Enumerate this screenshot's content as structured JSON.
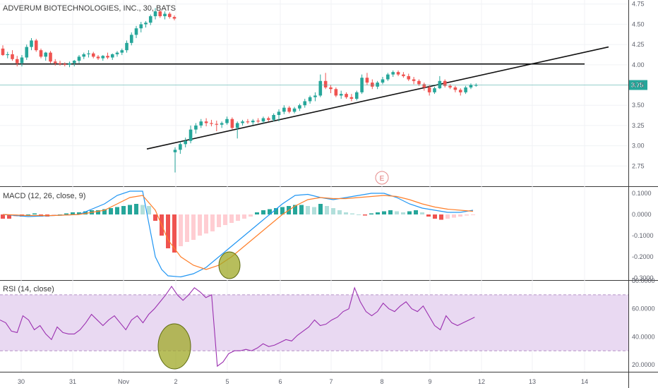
{
  "main_pane": {
    "title": "ADVERUM BIOTECHNOLOGIES, INC., 30, BATS",
    "price_label": "3.75",
    "earnings_marker": "E"
  },
  "macd_pane": {
    "title": "MACD (12, 26, close, 9)"
  },
  "rsi_pane": {
    "title": "RSI (14, close)"
  },
  "colors": {
    "up": "#26a69a",
    "down": "#ef5350",
    "macd": "#2196f3",
    "signal": "#ff7f2a",
    "rsi": "#9b30b0",
    "rsi_band": "#e9d9f2",
    "annotation": "#9fa826",
    "price_line": "#26a69a"
  },
  "chart_data": [
    {
      "type": "candlestick",
      "title": "ADVERUM BIOTECHNOLOGIES, INC., 30, BATS",
      "ylim": [
        2.5,
        4.8
      ],
      "y_ticks": [
        "4.75",
        "4.50",
        "4.25",
        "4.00",
        "3.75",
        "3.50",
        "3.25",
        "3.00",
        "2.75"
      ],
      "x_ticks": [
        "30",
        "31",
        "Nov",
        "2",
        "5",
        "6",
        "7",
        "8",
        "9",
        "12",
        "13",
        "14"
      ],
      "last_price": 3.75,
      "candles": [
        {
          "o": 4.2,
          "h": 4.24,
          "l": 4.11,
          "c": 4.12
        },
        {
          "o": 4.12,
          "h": 4.16,
          "l": 4.08,
          "c": 4.13
        },
        {
          "o": 4.13,
          "h": 4.18,
          "l": 4.05,
          "c": 4.07
        },
        {
          "o": 4.07,
          "h": 4.11,
          "l": 3.98,
          "c": 4.02
        },
        {
          "o": 4.02,
          "h": 4.12,
          "l": 3.98,
          "c": 4.09
        },
        {
          "o": 4.09,
          "h": 4.25,
          "l": 4.06,
          "c": 4.22
        },
        {
          "o": 4.22,
          "h": 4.33,
          "l": 4.18,
          "c": 4.3
        },
        {
          "o": 4.3,
          "h": 4.32,
          "l": 4.16,
          "c": 4.18
        },
        {
          "o": 4.18,
          "h": 4.2,
          "l": 4.08,
          "c": 4.1
        },
        {
          "o": 4.1,
          "h": 4.16,
          "l": 4.05,
          "c": 4.15
        },
        {
          "o": 4.15,
          "h": 4.17,
          "l": 4.02,
          "c": 4.04
        },
        {
          "o": 4.04,
          "h": 4.07,
          "l": 3.99,
          "c": 4.02
        },
        {
          "o": 4.02,
          "h": 4.05,
          "l": 3.99,
          "c": 4.01
        },
        {
          "o": 4.01,
          "h": 4.03,
          "l": 3.98,
          "c": 4.0
        },
        {
          "o": 4.0,
          "h": 4.04,
          "l": 3.97,
          "c": 4.02
        },
        {
          "o": 4.02,
          "h": 4.06,
          "l": 3.98,
          "c": 4.05
        },
        {
          "o": 4.05,
          "h": 4.12,
          "l": 4.02,
          "c": 4.1
        },
        {
          "o": 4.1,
          "h": 4.15,
          "l": 4.07,
          "c": 4.13
        },
        {
          "o": 4.13,
          "h": 4.18,
          "l": 4.09,
          "c": 4.14
        },
        {
          "o": 4.14,
          "h": 4.16,
          "l": 4.08,
          "c": 4.1
        },
        {
          "o": 4.1,
          "h": 4.12,
          "l": 4.06,
          "c": 4.08
        },
        {
          "o": 4.08,
          "h": 4.12,
          "l": 4.05,
          "c": 4.11
        },
        {
          "o": 4.11,
          "h": 4.15,
          "l": 4.07,
          "c": 4.09
        },
        {
          "o": 4.09,
          "h": 4.14,
          "l": 4.06,
          "c": 4.13
        },
        {
          "o": 4.13,
          "h": 4.17,
          "l": 4.1,
          "c": 4.15
        },
        {
          "o": 4.15,
          "h": 4.2,
          "l": 4.12,
          "c": 4.18
        },
        {
          "o": 4.18,
          "h": 4.3,
          "l": 4.15,
          "c": 4.27
        },
        {
          "o": 4.27,
          "h": 4.4,
          "l": 4.24,
          "c": 4.37
        },
        {
          "o": 4.37,
          "h": 4.48,
          "l": 4.33,
          "c": 4.45
        },
        {
          "o": 4.45,
          "h": 4.53,
          "l": 4.4,
          "c": 4.5
        },
        {
          "o": 4.5,
          "h": 4.54,
          "l": 4.46,
          "c": 4.52
        },
        {
          "o": 4.52,
          "h": 4.62,
          "l": 4.49,
          "c": 4.6
        },
        {
          "o": 4.6,
          "h": 4.7,
          "l": 4.56,
          "c": 4.66
        },
        {
          "o": 4.66,
          "h": 4.68,
          "l": 4.58,
          "c": 4.6
        },
        {
          "o": 4.6,
          "h": 4.66,
          "l": 4.56,
          "c": 4.63
        },
        {
          "o": 4.63,
          "h": 4.65,
          "l": 4.57,
          "c": 4.59
        },
        {
          "o": 4.59,
          "h": 4.61,
          "l": 4.55,
          "c": 4.57
        },
        {
          "o": 2.92,
          "h": 2.98,
          "l": 2.67,
          "c": 2.95
        },
        {
          "o": 2.95,
          "h": 3.05,
          "l": 2.9,
          "c": 3.02
        },
        {
          "o": 3.02,
          "h": 3.1,
          "l": 2.98,
          "c": 3.06
        },
        {
          "o": 3.06,
          "h": 3.25,
          "l": 3.03,
          "c": 3.2
        },
        {
          "o": 3.2,
          "h": 3.28,
          "l": 3.15,
          "c": 3.25
        },
        {
          "o": 3.25,
          "h": 3.33,
          "l": 3.22,
          "c": 3.3
        },
        {
          "o": 3.3,
          "h": 3.34,
          "l": 3.24,
          "c": 3.28
        },
        {
          "o": 3.28,
          "h": 3.32,
          "l": 3.24,
          "c": 3.27
        },
        {
          "o": 3.27,
          "h": 3.31,
          "l": 3.18,
          "c": 3.26
        },
        {
          "o": 3.26,
          "h": 3.3,
          "l": 3.22,
          "c": 3.28
        },
        {
          "o": 3.28,
          "h": 3.36,
          "l": 3.26,
          "c": 3.33
        },
        {
          "o": 3.33,
          "h": 3.35,
          "l": 3.2,
          "c": 3.22
        },
        {
          "o": 3.22,
          "h": 3.3,
          "l": 3.09,
          "c": 3.28
        },
        {
          "o": 3.28,
          "h": 3.32,
          "l": 3.25,
          "c": 3.3
        },
        {
          "o": 3.3,
          "h": 3.33,
          "l": 3.27,
          "c": 3.29
        },
        {
          "o": 3.29,
          "h": 3.33,
          "l": 3.26,
          "c": 3.31
        },
        {
          "o": 3.31,
          "h": 3.34,
          "l": 3.28,
          "c": 3.3
        },
        {
          "o": 3.3,
          "h": 3.36,
          "l": 3.28,
          "c": 3.34
        },
        {
          "o": 3.34,
          "h": 3.36,
          "l": 3.3,
          "c": 3.32
        },
        {
          "o": 3.32,
          "h": 3.4,
          "l": 3.3,
          "c": 3.38
        },
        {
          "o": 3.38,
          "h": 3.45,
          "l": 3.3,
          "c": 3.42
        },
        {
          "o": 3.42,
          "h": 3.5,
          "l": 3.39,
          "c": 3.47
        },
        {
          "o": 3.47,
          "h": 3.49,
          "l": 3.4,
          "c": 3.42
        },
        {
          "o": 3.42,
          "h": 3.48,
          "l": 3.4,
          "c": 3.46
        },
        {
          "o": 3.46,
          "h": 3.52,
          "l": 3.43,
          "c": 3.5
        },
        {
          "o": 3.5,
          "h": 3.58,
          "l": 3.47,
          "c": 3.55
        },
        {
          "o": 3.55,
          "h": 3.62,
          "l": 3.52,
          "c": 3.6
        },
        {
          "o": 3.6,
          "h": 3.66,
          "l": 3.55,
          "c": 3.62
        },
        {
          "o": 3.62,
          "h": 3.88,
          "l": 3.6,
          "c": 3.8
        },
        {
          "o": 3.8,
          "h": 3.9,
          "l": 3.7,
          "c": 3.72
        },
        {
          "o": 3.72,
          "h": 3.75,
          "l": 3.65,
          "c": 3.7
        },
        {
          "o": 3.7,
          "h": 3.72,
          "l": 3.6,
          "c": 3.62
        },
        {
          "o": 3.62,
          "h": 3.68,
          "l": 3.58,
          "c": 3.64
        },
        {
          "o": 3.64,
          "h": 3.66,
          "l": 3.58,
          "c": 3.6
        },
        {
          "o": 3.6,
          "h": 3.64,
          "l": 3.55,
          "c": 3.58
        },
        {
          "o": 3.58,
          "h": 3.68,
          "l": 3.56,
          "c": 3.66
        },
        {
          "o": 3.66,
          "h": 3.88,
          "l": 3.64,
          "c": 3.84
        },
        {
          "o": 3.84,
          "h": 3.9,
          "l": 3.75,
          "c": 3.78
        },
        {
          "o": 3.78,
          "h": 3.82,
          "l": 3.7,
          "c": 3.73
        },
        {
          "o": 3.73,
          "h": 3.8,
          "l": 3.7,
          "c": 3.78
        },
        {
          "o": 3.78,
          "h": 3.85,
          "l": 3.76,
          "c": 3.82
        },
        {
          "o": 3.82,
          "h": 3.9,
          "l": 3.8,
          "c": 3.88
        },
        {
          "o": 3.88,
          "h": 3.93,
          "l": 3.85,
          "c": 3.91
        },
        {
          "o": 3.91,
          "h": 3.93,
          "l": 3.86,
          "c": 3.88
        },
        {
          "o": 3.88,
          "h": 3.91,
          "l": 3.84,
          "c": 3.86
        },
        {
          "o": 3.86,
          "h": 3.89,
          "l": 3.8,
          "c": 3.82
        },
        {
          "o": 3.82,
          "h": 3.85,
          "l": 3.76,
          "c": 3.8
        },
        {
          "o": 3.8,
          "h": 3.82,
          "l": 3.74,
          "c": 3.76
        },
        {
          "o": 3.76,
          "h": 3.78,
          "l": 3.68,
          "c": 3.72
        },
        {
          "o": 3.72,
          "h": 3.75,
          "l": 3.62,
          "c": 3.66
        },
        {
          "o": 3.66,
          "h": 3.73,
          "l": 3.64,
          "c": 3.71
        },
        {
          "o": 3.71,
          "h": 3.86,
          "l": 3.7,
          "c": 3.8
        },
        {
          "o": 3.8,
          "h": 3.82,
          "l": 3.72,
          "c": 3.74
        },
        {
          "o": 3.74,
          "h": 3.76,
          "l": 3.7,
          "c": 3.72
        },
        {
          "o": 3.72,
          "h": 3.74,
          "l": 3.66,
          "c": 3.69
        },
        {
          "o": 3.69,
          "h": 3.71,
          "l": 3.62,
          "c": 3.66
        },
        {
          "o": 3.66,
          "h": 3.74,
          "l": 3.64,
          "c": 3.72
        },
        {
          "o": 3.72,
          "h": 3.77,
          "l": 3.7,
          "c": 3.75
        },
        {
          "o": 3.75,
          "h": 3.77,
          "l": 3.73,
          "c": 3.75
        }
      ],
      "drawings": [
        {
          "type": "horizontal_line",
          "price": 4.01,
          "from_candle": 0,
          "to_candle": 80
        },
        {
          "type": "trendline",
          "from": {
            "candle": 21,
            "price": 2.96
          },
          "to": {
            "candle": 88,
            "price": 4.22
          }
        }
      ]
    },
    {
      "type": "line",
      "title": "MACD (12, 26, close, 9)",
      "ylim": [
        -0.31,
        0.13
      ],
      "y_ticks": [
        "0.1000",
        "0.0000",
        "-0.1000",
        "-0.2000",
        "-0.3000"
      ],
      "series": [
        {
          "name": "MACD",
          "x": [
            0,
            4,
            8,
            12,
            16,
            18,
            20,
            22,
            24,
            25,
            26,
            28,
            30,
            32,
            34,
            36,
            38,
            40,
            42,
            44,
            46,
            48,
            50,
            52,
            54,
            56,
            58,
            60,
            62,
            64,
            66,
            68,
            70,
            72,
            74
          ],
          "values": [
            0.0,
            -0.01,
            -0.005,
            0.0,
            0.05,
            0.09,
            0.11,
            0.11,
            -0.2,
            -0.26,
            -0.29,
            -0.295,
            -0.28,
            -0.25,
            -0.2,
            -0.15,
            -0.1,
            -0.05,
            0.0,
            0.05,
            0.09,
            0.095,
            0.08,
            0.07,
            0.08,
            0.09,
            0.1,
            0.1,
            0.08,
            0.05,
            0.03,
            0.02,
            0.01,
            0.01,
            0.02
          ]
        },
        {
          "name": "Signal",
          "x": [
            0,
            4,
            8,
            12,
            16,
            18,
            20,
            22,
            24,
            25,
            26,
            28,
            30,
            32,
            34,
            36,
            38,
            40,
            42,
            44,
            46,
            48,
            50,
            52,
            54,
            56,
            58,
            60,
            62,
            64,
            66,
            68,
            70,
            72,
            74
          ],
          "values": [
            0.0,
            -0.005,
            -0.005,
            0.0,
            0.02,
            0.05,
            0.08,
            0.09,
            0.02,
            -0.05,
            -0.12,
            -0.2,
            -0.24,
            -0.26,
            -0.24,
            -0.2,
            -0.15,
            -0.1,
            -0.05,
            0.0,
            0.04,
            0.07,
            0.08,
            0.075,
            0.075,
            0.08,
            0.085,
            0.09,
            0.085,
            0.07,
            0.05,
            0.035,
            0.025,
            0.02,
            0.015
          ]
        }
      ],
      "histogram": [
        -0.02,
        -0.02,
        -0.01,
        -0.01,
        0.0,
        0.005,
        -0.01,
        -0.01,
        -0.005,
        0.0,
        0.005,
        0.01,
        0.01,
        0.015,
        0.02,
        0.02,
        0.025,
        0.03,
        0.035,
        0.04,
        0.045,
        0.05,
        0.045,
        0.04,
        -0.03,
        -0.1,
        -0.16,
        -0.18,
        -0.15,
        -0.13,
        -0.12,
        -0.1,
        -0.09,
        -0.08,
        -0.06,
        -0.05,
        -0.04,
        -0.03,
        -0.02,
        -0.01,
        0.01,
        0.02,
        0.025,
        0.03,
        0.035,
        0.04,
        0.045,
        0.045,
        0.04,
        0.035,
        0.05,
        0.04,
        0.03,
        0.02,
        0.01,
        0.005,
        0.0,
        -0.005,
        0.005,
        0.01,
        0.015,
        0.02,
        0.015,
        0.01,
        0.015,
        0.02,
        0.01,
        -0.01,
        -0.02,
        -0.025,
        -0.02,
        -0.015,
        -0.01,
        -0.005,
        -0.003
      ]
    },
    {
      "type": "line",
      "title": "RSI (14, close)",
      "ylim": [
        15,
        80
      ],
      "y_ticks": [
        "80.0000",
        "60.0000",
        "40.0000",
        "20.0000"
      ],
      "bands": [
        30,
        70
      ],
      "series": [
        {
          "name": "RSI",
          "values": [
            52,
            50,
            44,
            43,
            55,
            52,
            45,
            48,
            42,
            38,
            47,
            43,
            42,
            42,
            45,
            50,
            56,
            52,
            48,
            52,
            55,
            50,
            45,
            52,
            55,
            50,
            56,
            60,
            65,
            70,
            76,
            70,
            66,
            70,
            75,
            72,
            68,
            70,
            19,
            22,
            28,
            30,
            30,
            31,
            30,
            32,
            35,
            33,
            34,
            36,
            38,
            37,
            41,
            44,
            47,
            52,
            48,
            49,
            52,
            54,
            58,
            60,
            75,
            65,
            58,
            55,
            58,
            64,
            60,
            58,
            62,
            65,
            60,
            58,
            62,
            55,
            48,
            45,
            55,
            50,
            48,
            50,
            52,
            54
          ]
        }
      ]
    }
  ]
}
